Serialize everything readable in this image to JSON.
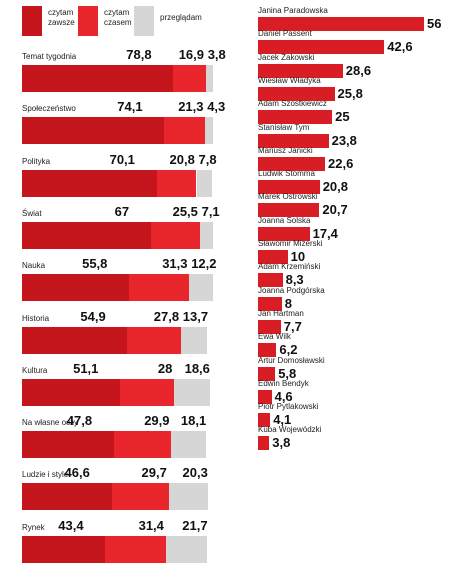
{
  "colors": {
    "czytam_zawsze": "#c4161c",
    "czytam_czasem": "#e8262c",
    "przegladam": "#d6d6d6",
    "author_bar": "#d81e24"
  },
  "legend": [
    {
      "label": "czytam\nzawsze",
      "color_key": "czytam_zawsze"
    },
    {
      "label": "czytam\nczasem",
      "color_key": "czytam_czasem"
    },
    {
      "label": "przeglądam",
      "color_key": "przegladam"
    }
  ],
  "chart_data": [
    {
      "type": "bar",
      "orientation": "horizontal",
      "stacked": true,
      "categories": [
        "Temat tygodnia",
        "Społeczeństwo",
        "Polityka",
        "Świat",
        "Nauka",
        "Historia",
        "Kultura",
        "Na własne oczy",
        "Ludzie i style",
        "Rynek"
      ],
      "series": [
        {
          "name": "czytam zawsze",
          "values": [
            78.8,
            74.1,
            70.1,
            67,
            55.8,
            54.9,
            51.1,
            47.8,
            46.6,
            43.4
          ],
          "labels": [
            "78,8",
            "74,1",
            "70,1",
            "67",
            "55,8",
            "54,9",
            "51,1",
            "47,8",
            "46,6",
            "43,4"
          ]
        },
        {
          "name": "czytam czasem",
          "values": [
            16.9,
            21.3,
            20.8,
            25.5,
            31.3,
            27.8,
            28,
            29.9,
            29.7,
            31.4
          ],
          "labels": [
            "16,9",
            "21,3",
            "20,8",
            "25,5",
            "31,3",
            "27,8",
            "28",
            "29,9",
            "29,7",
            "31,4"
          ]
        },
        {
          "name": "przeglądam",
          "values": [
            3.8,
            4.3,
            7.8,
            7.1,
            12.2,
            13.7,
            18.6,
            18.1,
            20.3,
            21.7
          ],
          "labels": [
            "3,8",
            "4,3",
            "7,8",
            "7,1",
            "12,2",
            "13,7",
            "18,6",
            "18,1",
            "20,3",
            "21,7"
          ]
        }
      ],
      "xlim": [
        0,
        100
      ],
      "legend_position": "top-left",
      "grid": false
    },
    {
      "type": "bar",
      "orientation": "horizontal",
      "categories": [
        "Janina Paradowska",
        "Daniel Passent",
        "Jacek Żakowski",
        "Wiesław Władyka",
        "Adam Szostkiewicz",
        "Stanisław Tym",
        "Mariusz Janicki",
        "Ludwik Stomma",
        "Marek Ostrowski",
        "Joanna Solska",
        "Sławomir Mizerski",
        "Adam Krzemiński",
        "Joanna Podgórska",
        "Jan Hartman",
        "Ewa Wilk",
        "Artur Domosławski",
        "Edwin Bendyk",
        "Piotr Pytlakowski",
        "Kuba Wojewódzki"
      ],
      "values": [
        56,
        42.6,
        28.6,
        25.8,
        25,
        23.8,
        22.6,
        20.8,
        20.7,
        17.4,
        10,
        8.3,
        8,
        7.7,
        6.2,
        5.8,
        4.6,
        4.1,
        3.8
      ],
      "labels": [
        "56",
        "42,6",
        "28,6",
        "25,8",
        "25",
        "23,8",
        "22,6",
        "20,8",
        "20,7",
        "17,4",
        "10",
        "8,3",
        "8",
        "7,7",
        "6,2",
        "5,8",
        "4,6",
        "4,1",
        "3,8"
      ],
      "xlim": [
        0,
        56
      ],
      "grid": false
    }
  ]
}
